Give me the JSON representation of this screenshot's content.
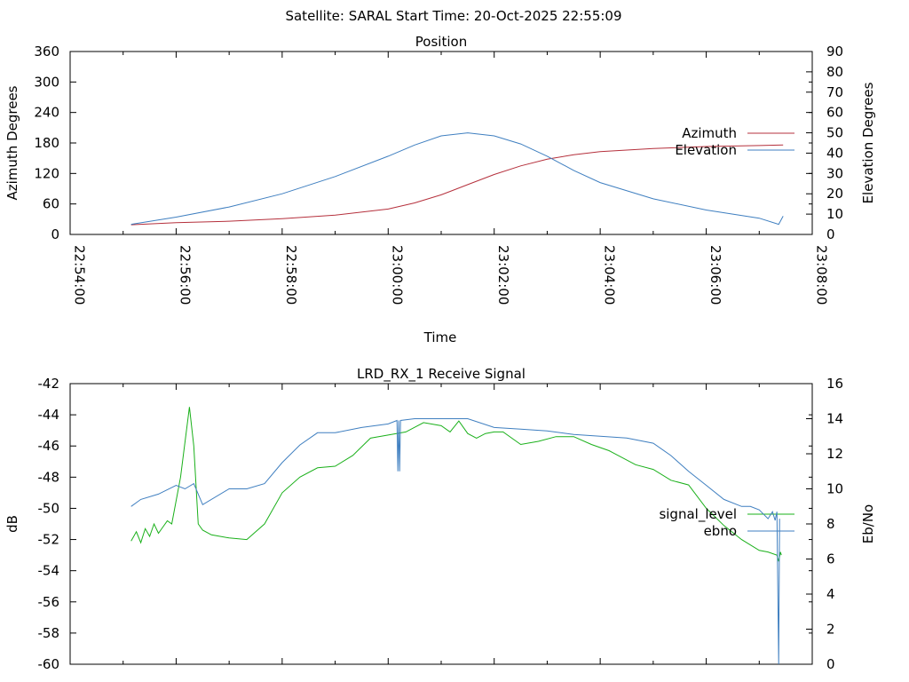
{
  "header": {
    "title": "Satellite: SARAL    Start Time: 20-Oct-2025 22:55:09"
  },
  "chart_data": [
    {
      "id": "position",
      "type": "line",
      "title": "Position",
      "xlabel": "Time",
      "ylabel": "Azimuth Degrees",
      "y2label": "Elevation Degrees",
      "xlim": [
        "22:54:00",
        "23:08:00"
      ],
      "xticks": [
        "22:54:00",
        "22:56:00",
        "22:58:00",
        "23:00:00",
        "23:02:00",
        "23:04:00",
        "23:06:00",
        "23:08:00"
      ],
      "ylim": [
        0,
        360
      ],
      "yticks": [
        0,
        60,
        120,
        180,
        240,
        300,
        360
      ],
      "y2lim": [
        0,
        90
      ],
      "y2ticks": [
        0,
        10,
        20,
        30,
        40,
        50,
        60,
        70,
        80,
        90
      ],
      "grid": false,
      "legend_position": "top-right",
      "series": [
        {
          "name": "Azimuth",
          "axis": "left",
          "color": "#b5303c",
          "x": [
            "22:55:09",
            "22:56:00",
            "22:57:00",
            "22:58:00",
            "22:59:00",
            "23:00:00",
            "23:00:30",
            "23:01:00",
            "23:01:30",
            "23:02:00",
            "23:02:30",
            "23:03:00",
            "23:03:30",
            "23:04:00",
            "23:05:00",
            "23:06:00",
            "23:07:00",
            "23:07:27"
          ],
          "values": [
            19,
            23,
            26,
            31,
            38,
            50,
            62,
            78,
            98,
            118,
            135,
            148,
            157,
            163,
            169,
            173,
            175,
            176
          ]
        },
        {
          "name": "Elevation",
          "axis": "right",
          "color": "#3f7fc0",
          "x": [
            "22:55:09",
            "22:56:00",
            "22:57:00",
            "22:58:00",
            "22:59:00",
            "23:00:00",
            "23:00:30",
            "23:01:00",
            "23:01:30",
            "23:02:00",
            "23:02:30",
            "23:03:00",
            "23:03:30",
            "23:04:00",
            "23:05:00",
            "23:06:00",
            "23:07:00",
            "23:07:22",
            "23:07:27"
          ],
          "values": [
            5,
            8.5,
            13.5,
            20,
            28.5,
            38.5,
            44,
            48.5,
            50,
            48.5,
            44.5,
            38.5,
            31.5,
            25.5,
            17.5,
            12,
            8,
            5,
            9
          ]
        }
      ]
    },
    {
      "id": "receive",
      "type": "line",
      "title": "LRD_RX_1 Receive Signal",
      "ylabel": "dB",
      "y2label": "Eb/No",
      "xlim": [
        "22:54:00",
        "23:08:00"
      ],
      "ylim": [
        -60,
        -42
      ],
      "yticks": [
        -60,
        -58,
        -56,
        -54,
        -52,
        -50,
        -48,
        -46,
        -44,
        -42
      ],
      "y2lim": [
        0,
        16
      ],
      "y2ticks": [
        0,
        2,
        4,
        6,
        8,
        10,
        12,
        14,
        16
      ],
      "grid": false,
      "legend_position": "right",
      "series": [
        {
          "name": "signal_level",
          "axis": "left",
          "color": "#1ab01a",
          "x": [
            "22:55:09",
            "22:55:15",
            "22:55:20",
            "22:55:25",
            "22:55:30",
            "22:55:35",
            "22:55:40",
            "22:55:45",
            "22:55:50",
            "22:55:55",
            "22:56:05",
            "22:56:15",
            "22:56:20",
            "22:56:25",
            "22:56:30",
            "22:56:40",
            "22:57:00",
            "22:57:20",
            "22:57:40",
            "22:58:00",
            "22:58:20",
            "22:58:40",
            "22:59:00",
            "22:59:20",
            "22:59:40",
            "23:00:00",
            "23:00:20",
            "23:00:40",
            "23:01:00",
            "23:01:10",
            "23:01:20",
            "23:01:30",
            "23:01:40",
            "23:01:50",
            "23:02:00",
            "23:02:10",
            "23:02:30",
            "23:02:50",
            "23:03:10",
            "23:03:30",
            "23:03:50",
            "23:04:10",
            "23:04:40",
            "23:05:00",
            "23:05:20",
            "23:05:40",
            "23:06:00",
            "23:06:20",
            "23:06:40",
            "23:07:00",
            "23:07:10",
            "23:07:20",
            "23:07:22",
            "23:07:24",
            "23:07:25"
          ],
          "values": [
            -52.1,
            -51.5,
            -52.2,
            -51.3,
            -51.8,
            -51.0,
            -51.6,
            -51.2,
            -50.8,
            -51.0,
            -48.0,
            -43.5,
            -46.0,
            -51.0,
            -51.4,
            -51.7,
            -51.9,
            -52.0,
            -51.0,
            -49.0,
            -48.0,
            -47.4,
            -47.3,
            -46.6,
            -45.5,
            -45.3,
            -45.1,
            -44.5,
            -44.7,
            -45.1,
            -44.4,
            -45.2,
            -45.5,
            -45.2,
            -45.1,
            -45.1,
            -45.9,
            -45.7,
            -45.4,
            -45.4,
            -45.9,
            -46.3,
            -47.2,
            -47.5,
            -48.2,
            -48.5,
            -50.0,
            -51.1,
            -52.0,
            -52.7,
            -52.8,
            -53.0,
            -53.4,
            -52.8,
            -53.0
          ]
        },
        {
          "name": "ebno",
          "axis": "right",
          "color": "#3f7fc0",
          "x": [
            "22:55:09",
            "22:55:20",
            "22:55:40",
            "22:56:00",
            "22:56:10",
            "22:56:20",
            "22:56:30",
            "22:57:00",
            "22:57:20",
            "22:57:40",
            "22:58:00",
            "22:58:20",
            "22:58:40",
            "22:59:00",
            "22:59:30",
            "23:00:00",
            "23:00:10",
            "23:00:11",
            "23:00:12",
            "23:00:13",
            "23:00:14",
            "23:00:30",
            "23:01:00",
            "23:01:30",
            "23:02:00",
            "23:02:30",
            "23:03:00",
            "23:03:30",
            "23:04:00",
            "23:04:30",
            "23:05:00",
            "23:05:20",
            "23:05:40",
            "23:06:00",
            "23:06:20",
            "23:06:40",
            "23:06:50",
            "23:07:00",
            "23:07:10",
            "23:07:15",
            "23:07:18",
            "23:07:20",
            "23:07:22",
            "23:07:23"
          ],
          "values": [
            9.0,
            9.4,
            9.7,
            10.2,
            10.0,
            10.3,
            9.1,
            10.0,
            10.0,
            10.3,
            11.5,
            12.5,
            13.2,
            13.2,
            13.5,
            13.7,
            13.9,
            11.0,
            13.9,
            11.0,
            13.9,
            14.0,
            14.0,
            14.0,
            13.5,
            13.4,
            13.3,
            13.1,
            13.0,
            12.9,
            12.6,
            11.9,
            11.0,
            10.2,
            9.4,
            9.0,
            9.0,
            8.8,
            8.3,
            8.7,
            8.2,
            8.7,
            0.0,
            8.3
          ]
        }
      ]
    }
  ]
}
